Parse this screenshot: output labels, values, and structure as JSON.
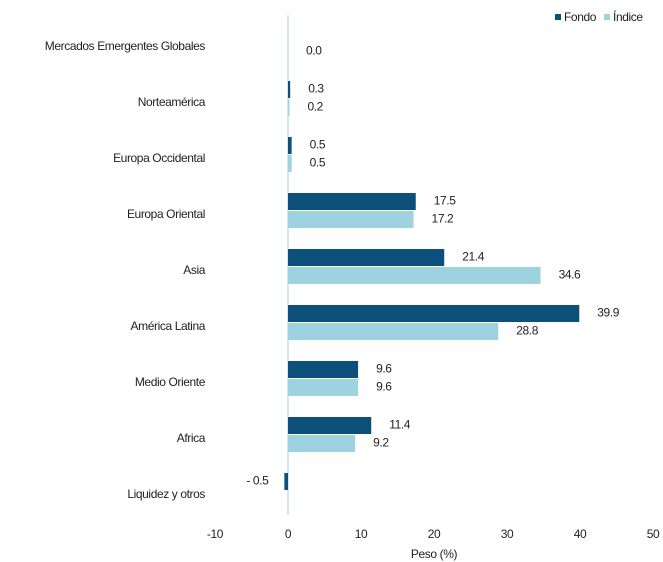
{
  "chart_data": {
    "type": "hbar",
    "categories": [
      "Mercados Emergentes Globales",
      "Norteamérica",
      "Europa Occidental",
      "Europa Oriental",
      "Asia",
      "América Latina",
      "Medio Oriente",
      "Africa",
      "Liquidez y otros"
    ],
    "series": [
      {
        "name": "Fondo",
        "color": "#0b4f7a",
        "values": [
          null,
          0.3,
          0.5,
          17.5,
          21.4,
          39.9,
          9.6,
          11.4,
          -0.5
        ],
        "value_labels": [
          null,
          "0.3",
          "0.5",
          "17.5",
          "21.4",
          "39.9",
          "9.6",
          "11.4",
          "- 0.5"
        ]
      },
      {
        "name": "Índice",
        "color": "#9dd2df",
        "values": [
          0,
          0.2,
          0.5,
          17.2,
          34.6,
          28.8,
          9.6,
          9.2,
          null
        ],
        "value_labels": [
          "0.0",
          "0.2",
          "0.5",
          "17.2",
          "34.6",
          "28.8",
          "9.6",
          "9.2",
          null
        ]
      }
    ],
    "xlabel": "Peso (%)",
    "xlim": [
      -10,
      50
    ],
    "xticks": [
      -10,
      0,
      10,
      20,
      30,
      40,
      50
    ],
    "legend": "top-right"
  }
}
